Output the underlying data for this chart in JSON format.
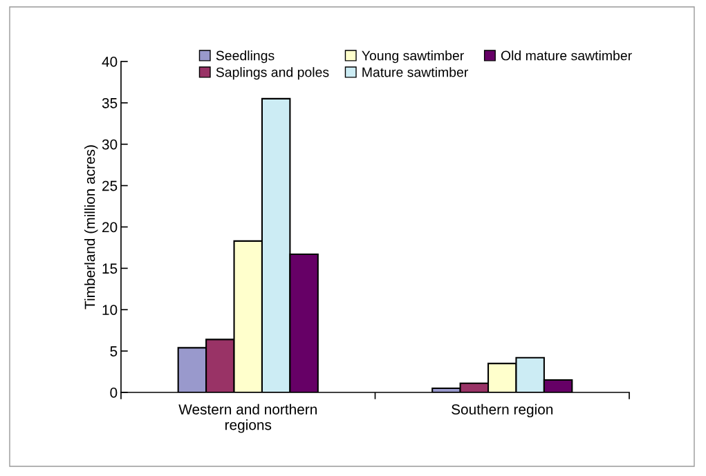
{
  "chart_data": {
    "type": "bar",
    "ylabel": "Timberland (million acres)",
    "categories": [
      "Western and northern\nregions",
      "Southern region"
    ],
    "series": [
      {
        "name": "Seedlings",
        "color": "#9999cc",
        "values": [
          5.4,
          0.5
        ]
      },
      {
        "name": "Saplings and poles",
        "color": "#993366",
        "values": [
          6.4,
          1.1
        ]
      },
      {
        "name": "Young sawtimber",
        "color": "#ffffcc",
        "values": [
          18.3,
          3.5
        ]
      },
      {
        "name": "Mature sawtimber",
        "color": "#ccecf4",
        "values": [
          35.5,
          4.2
        ]
      },
      {
        "name": "Old mature sawtimber",
        "color": "#660066",
        "values": [
          16.7,
          1.5
        ]
      }
    ],
    "ylim": [
      0,
      40
    ],
    "yticks": [
      0,
      5,
      10,
      15,
      20,
      25,
      30,
      35,
      40
    ],
    "grid": false,
    "legend": "top"
  }
}
